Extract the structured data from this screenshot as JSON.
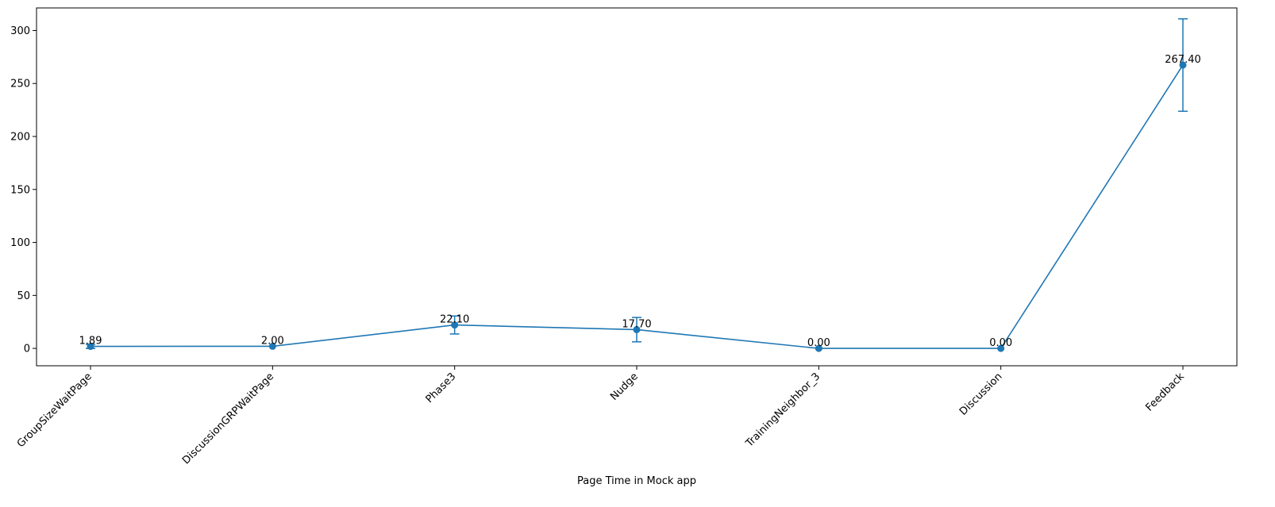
{
  "chart_data": {
    "type": "line",
    "title": "",
    "xlabel": "Page Time in Mock app",
    "ylabel": "",
    "categories": [
      "GroupSizeWaitPage",
      "DiscussionGRPWaitPage",
      "Phase3",
      "Nudge",
      "TrainingNeighbor_3",
      "Discussion",
      "Feedback"
    ],
    "values": [
      1.89,
      2.0,
      22.1,
      17.7,
      0.0,
      0.0,
      267.4
    ],
    "errors": [
      2.0,
      0.0,
      8.5,
      11.5,
      0.0,
      0.0,
      43.6
    ],
    "data_labels": [
      "1.89",
      "2.00",
      "22.10",
      "17.70",
      "0.00",
      "0.00",
      "267.40"
    ],
    "ylim": [
      -16.4,
      321.3
    ],
    "yticks": [
      0,
      50,
      100,
      150,
      200,
      250,
      300
    ],
    "ytick_labels": [
      "0",
      "50",
      "100",
      "150",
      "200",
      "250",
      "300"
    ],
    "grid": false,
    "legend": "none",
    "color": "#1f77b4"
  }
}
